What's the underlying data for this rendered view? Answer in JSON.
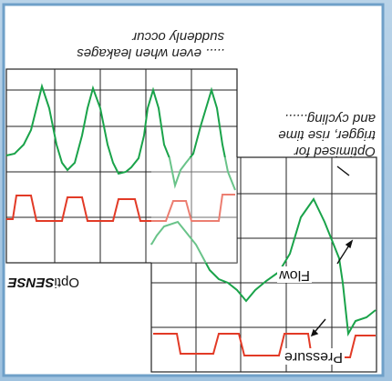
{
  "caption_leaks_line1": "..... even when leakages",
  "caption_leaks_line2": "suddenly occur",
  "caption_opt_line1": "Optimised for",
  "caption_opt_line2": "trigger, rise time",
  "caption_opt_line3": "and cycling......",
  "brand_prefix": "Opti",
  "brand_suffix": "SENSE",
  "label_flow": "Flow",
  "label_pressure": "Pressure",
  "colors": {
    "flow_trace": "#1aa34a",
    "pressure_trace": "#e23a26",
    "grid": "#222222",
    "panel_bg": "#ffffff",
    "backdrop": "#a9c8e2"
  }
}
